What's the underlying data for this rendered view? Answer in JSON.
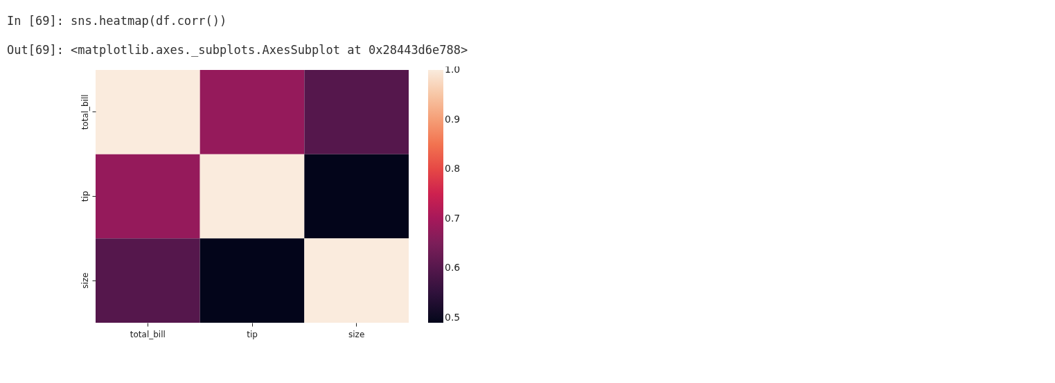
{
  "chart_data": {
    "type": "heatmap",
    "annotations": [
      "In [69]: sns.heatmap(df.corr())",
      "Out[69]: <matplotlib.axes._subplots.AxesSubplot at 0x28443d6e788>"
    ],
    "categories": [
      "total_bill",
      "tip",
      "size"
    ],
    "y_categories": [
      "total_bill",
      "tip",
      "size"
    ],
    "cells": [
      [
        1.0,
        0.68,
        0.6
      ],
      [
        0.68,
        1.0,
        0.49
      ],
      [
        0.6,
        0.49,
        1.0
      ]
    ],
    "clim": [
      0.49,
      1.0
    ],
    "cticks": [
      0.5,
      0.6,
      0.7,
      0.8,
      0.9,
      {
        "value": 1.0,
        "label": "1.0"
      }
    ]
  }
}
